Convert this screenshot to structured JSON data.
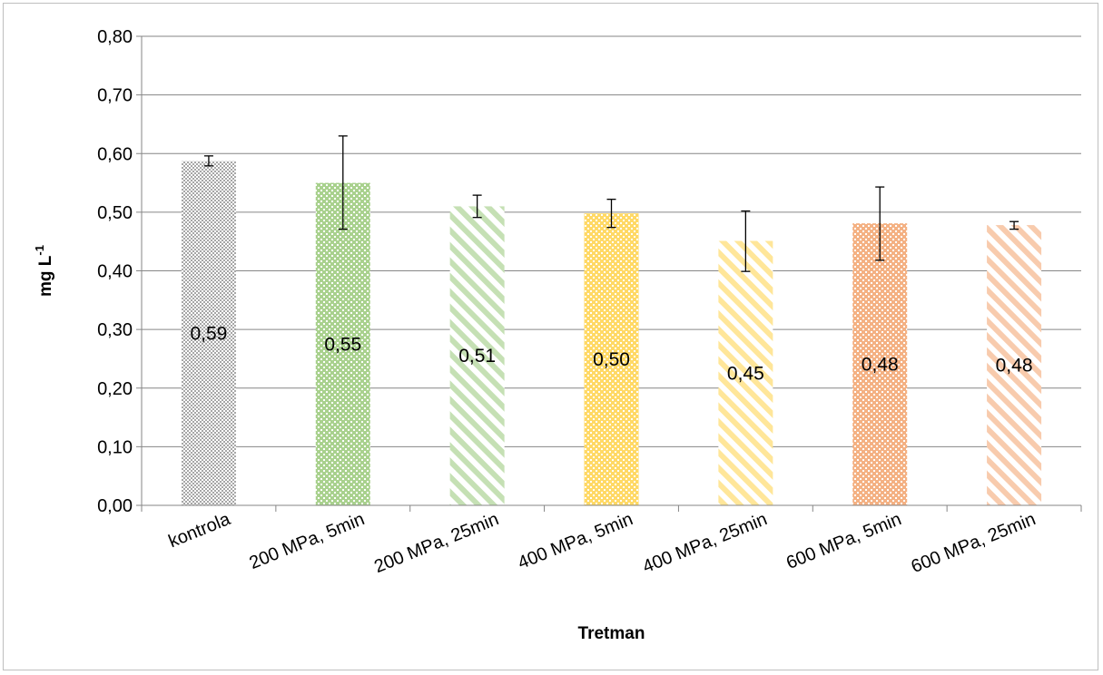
{
  "chart_data": {
    "type": "bar",
    "xlabel": "Tretman",
    "ylabel": "mg L",
    "ylabel_superscript": "-1",
    "ylim": [
      0,
      0.8
    ],
    "yticks": [
      "0,00",
      "0,10",
      "0,20",
      "0,30",
      "0,40",
      "0,50",
      "0,60",
      "0,70",
      "0,80"
    ],
    "grid": true,
    "legend": "none",
    "categories": [
      "kontrola",
      "200 MPa, 5min",
      "200 MPa, 25min",
      "400 MPa, 5min",
      "400 MPa, 25min",
      "600 MPa, 5min",
      "600 MPa, 25min"
    ],
    "values": [
      0.587,
      0.55,
      0.51,
      0.498,
      0.451,
      0.481,
      0.478
    ],
    "error_low": [
      0.579,
      0.471,
      0.491,
      0.474,
      0.399,
      0.418,
      0.471
    ],
    "error_high": [
      0.596,
      0.63,
      0.529,
      0.522,
      0.502,
      0.543,
      0.484
    ],
    "data_labels": [
      "0,59",
      "0,55",
      "0,51",
      "0,50",
      "0,45",
      "0,48",
      "0,48"
    ],
    "bar_colors": [
      "#a6a6a6",
      "#a9d18e",
      "#c5e0b4",
      "#ffd966",
      "#ffe699",
      "#f4b183",
      "#f8cbad"
    ],
    "bar_patterns": [
      "dots",
      "checker",
      "stripes",
      "checker",
      "stripes",
      "checker",
      "stripes"
    ]
  }
}
